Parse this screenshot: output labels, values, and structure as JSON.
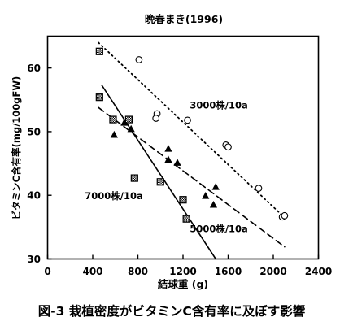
{
  "chart_data": {
    "type": "scatter",
    "title": "晩春まき(1996)",
    "xlabel": "結球重 (g)",
    "ylabel": "ビタミンC含有率(mg/100gFW)",
    "xlim": [
      0,
      2400
    ],
    "ylim": [
      30,
      65
    ],
    "xticks": [
      0,
      400,
      800,
      1200,
      1600,
      2000,
      2400
    ],
    "yticks": [
      30,
      40,
      50,
      60
    ],
    "xtick_labels": [
      "0",
      "400",
      "800",
      "1200",
      "1600",
      "2000",
      "2400"
    ],
    "ytick_labels": [
      "30",
      "40",
      "50",
      "60"
    ],
    "grid": false,
    "legend": "none",
    "series": [
      {
        "label": "3000株/10a",
        "marker": "open-circle",
        "line": "dotted",
        "trend": [
          [
            450,
            64
          ],
          [
            2100,
            36.5
          ]
        ],
        "points": [
          [
            810,
            61.3
          ],
          [
            970,
            52.8
          ],
          [
            960,
            52.1
          ],
          [
            1240,
            51.8
          ],
          [
            1580,
            47.9
          ],
          [
            1600,
            47.6
          ],
          [
            1870,
            41.1
          ],
          [
            2080,
            36.6
          ],
          [
            2100,
            36.8
          ]
        ]
      },
      {
        "label": "5000株/10a",
        "marker": "hatched-square",
        "line": "dashed",
        "trend": [
          [
            450,
            53.8
          ],
          [
            2100,
            31.9
          ]
        ],
        "points": [
          [
            460,
            62.6
          ],
          [
            460,
            55.4
          ],
          [
            580,
            51.9
          ],
          [
            720,
            51.9
          ],
          [
            770,
            42.7
          ],
          [
            1000,
            42.1
          ],
          [
            1200,
            39.3
          ],
          [
            1230,
            36.3
          ]
        ]
      },
      {
        "label": "7000株/10a",
        "marker": "filled-triangle",
        "line": "solid",
        "trend": [
          [
            480,
            57.3
          ],
          [
            1490,
            30
          ]
        ],
        "points": [
          [
            590,
            49.5
          ],
          [
            680,
            51.4
          ],
          [
            740,
            50.4
          ],
          [
            1070,
            47.3
          ],
          [
            1070,
            45.6
          ],
          [
            1150,
            45.1
          ],
          [
            1400,
            39.9
          ],
          [
            1470,
            38.5
          ],
          [
            1490,
            41.3
          ]
        ]
      }
    ],
    "annotations": [
      {
        "text": "3000株/10a",
        "x": 1260,
        "y": 53.6
      },
      {
        "text": "7000株/10a",
        "x": 330,
        "y": 39.4
      },
      {
        "text": "5000株/10a",
        "x": 1260,
        "y": 34.2
      }
    ]
  },
  "caption": "図-3 栽植密度がビタミンC含有率に及ぼす影響"
}
